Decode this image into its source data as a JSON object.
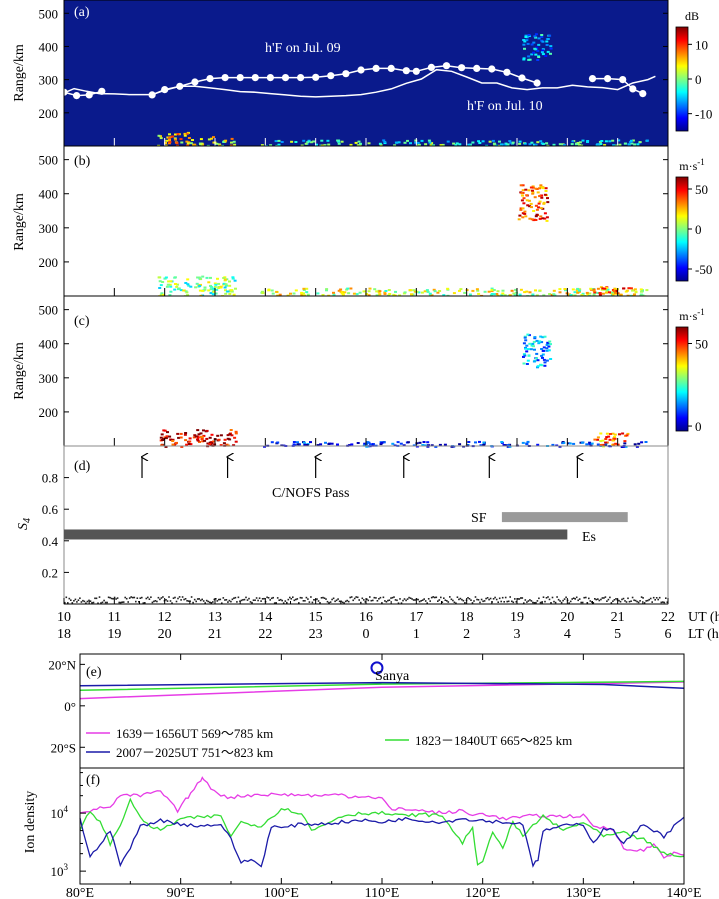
{
  "figure": {
    "panels": {
      "a": {
        "label": "(a)",
        "ylabel": "Range/km",
        "annotation_jul09": "h'F on Jul. 09",
        "annotation_jul10": "h'F on Jul. 10"
      },
      "b": {
        "label": "(b)",
        "ylabel": "Range/km"
      },
      "c": {
        "label": "(c)",
        "ylabel": "Range/km"
      },
      "d": {
        "label": "(d)",
        "pass_label": "C/NOFS Pass",
        "sf_label": "SF",
        "es_label": "Es"
      },
      "e": {
        "label": "(e)",
        "site_label": "Sanya"
      },
      "f": {
        "label": "(f)",
        "ylabel": "Ion density"
      }
    },
    "colorbars": [
      {
        "unit": "dB",
        "ticks": [
          "10",
          "0",
          "-10"
        ],
        "values": [
          10,
          0,
          -10
        ],
        "vmin": -15,
        "vmax": 15
      },
      {
        "unit": "m·s",
        "unit_sup": "-1",
        "ticks": [
          "50",
          "0",
          "-50"
        ],
        "values": [
          50,
          0,
          -50
        ],
        "vmin": -65,
        "vmax": 65
      },
      {
        "unit": "m·s",
        "unit_sup": "-1",
        "ticks": [
          "50",
          "0"
        ],
        "values": [
          50,
          0
        ],
        "vmin": -3,
        "vmax": 60
      }
    ],
    "ut_unit": "UT (h)",
    "lt_unit": "LT (h)",
    "ut_ticks": [
      "10",
      "11",
      "12",
      "13",
      "14",
      "15",
      "16",
      "17",
      "18",
      "19",
      "20",
      "21",
      "22"
    ],
    "lt_ticks": [
      "18",
      "19",
      "20",
      "21",
      "22",
      "23",
      "0",
      "1",
      "2",
      "3",
      "4",
      "5",
      "6"
    ],
    "lon_ticks": [
      "80°E",
      "90°E",
      "100°E",
      "110°E",
      "120°E",
      "130°E",
      "140°E"
    ],
    "lat_ticks": [
      "20°N",
      "0°",
      "20°S"
    ],
    "ion_ticks": {
      "e4": "4",
      "e3": "3"
    },
    "legend": [
      {
        "label": "1639－1656UT  569～785 km",
        "color": "#e63ce6"
      },
      {
        "label": "1823－1840UT  665～825 km",
        "color": "#33dd33"
      },
      {
        "label": "2007－2025UT  751～823 km",
        "color": "#1a1aa8"
      }
    ]
  },
  "chart_data": [
    {
      "panel": "a",
      "type": "heatmap",
      "xlabel": "UT (h)",
      "ylabel": "Range/km",
      "xlim": [
        10,
        22
      ],
      "ylim": [
        100,
        540
      ],
      "yticks": [
        "200",
        "300",
        "400",
        "500"
      ],
      "background_color": "#0a1a8c",
      "series": [
        {
          "name": "h'F on Jul. 09",
          "x": [
            10.0,
            10.25,
            10.5,
            10.75,
            11.75,
            12.0,
            12.3,
            12.6,
            12.9,
            13.2,
            13.5,
            13.8,
            14.1,
            14.4,
            14.7,
            15.0,
            15.3,
            15.6,
            15.9,
            16.2,
            16.5,
            16.8,
            17.0,
            17.3,
            17.6,
            17.9,
            18.2,
            18.5,
            18.8,
            19.1,
            19.4,
            20.5,
            20.8,
            21.1,
            21.3,
            21.5
          ],
          "y": [
            262,
            252,
            254,
            265,
            254,
            270,
            280,
            293,
            303,
            306,
            306,
            306,
            306,
            306,
            306,
            307,
            312,
            318,
            329,
            334,
            334,
            327,
            325,
            337,
            342,
            336,
            334,
            332,
            322,
            305,
            290,
            303,
            303,
            300,
            272,
            258
          ]
        },
        {
          "name": "h'F on Jul. 10",
          "x": [
            10.0,
            10.2,
            10.45,
            10.7,
            11.0,
            11.3,
            11.75,
            12.0,
            12.3,
            12.6,
            12.9,
            13.2,
            13.5,
            13.8,
            14.1,
            14.4,
            14.7,
            15.0,
            15.3,
            15.6,
            15.9,
            16.2,
            16.5,
            16.8,
            17.1,
            17.4,
            17.7,
            18.0,
            18.3,
            18.6,
            18.9,
            19.2,
            19.5,
            19.8,
            20.1,
            20.4,
            20.7,
            21.0,
            21.3,
            21.6,
            21.75
          ],
          "y": [
            260,
            273,
            265,
            258,
            257,
            255,
            255,
            268,
            280,
            280,
            275,
            270,
            264,
            262,
            258,
            254,
            250,
            248,
            250,
            252,
            255,
            262,
            272,
            289,
            302,
            330,
            325,
            308,
            290,
            290,
            275,
            270,
            275,
            275,
            283,
            278,
            276,
            270,
            290,
            300,
            310
          ]
        }
      ],
      "echo_regions": [
        {
          "x": [
            11.85,
            12.5
          ],
          "y": [
            100,
            145
          ],
          "value_db": 5
        },
        {
          "x": [
            12.5,
            13.4
          ],
          "y": [
            100,
            130
          ],
          "value_db": 3
        },
        {
          "x": [
            13.9,
            21.6
          ],
          "y": [
            103,
            120
          ],
          "value_db": -2
        },
        {
          "x": [
            19.1,
            19.65
          ],
          "y": [
            360,
            440
          ],
          "value_db": -6
        }
      ]
    },
    {
      "panel": "b",
      "type": "heatmap",
      "xlabel": "UT (h)",
      "ylabel": "Range/km",
      "xlim": [
        10,
        22
      ],
      "ylim": [
        100,
        540
      ],
      "yticks": [
        "200",
        "300",
        "400",
        "500"
      ],
      "echo_regions": [
        {
          "x": [
            11.85,
            13.4
          ],
          "y": [
            100,
            160
          ],
          "value_ms": 0
        },
        {
          "x": [
            13.9,
            21.6
          ],
          "y": [
            100,
            125
          ],
          "value_ms": 10
        },
        {
          "x": [
            19.0,
            19.6
          ],
          "y": [
            320,
            430
          ],
          "value_ms": 40
        },
        {
          "x": [
            20.5,
            21.3
          ],
          "y": [
            100,
            130
          ],
          "value_ms": 35
        }
      ]
    },
    {
      "panel": "c",
      "type": "heatmap",
      "xlabel": "UT (h)",
      "ylabel": "Range/km",
      "xlim": [
        10,
        22
      ],
      "ylim": [
        100,
        540
      ],
      "yticks": [
        "200",
        "300",
        "400",
        "500"
      ],
      "echo_regions": [
        {
          "x": [
            11.85,
            13.4
          ],
          "y": [
            100,
            150
          ],
          "value_ms": 55
        },
        {
          "x": [
            13.9,
            21.6
          ],
          "y": [
            100,
            115
          ],
          "value_ms": 5
        },
        {
          "x": [
            19.1,
            19.65
          ],
          "y": [
            330,
            430
          ],
          "value_ms": 15
        },
        {
          "x": [
            20.5,
            21.2
          ],
          "y": [
            100,
            140
          ],
          "value_ms": 45
        }
      ]
    },
    {
      "panel": "d",
      "type": "scatter",
      "xlabel": "UT (h)",
      "ylabel": "S4",
      "xlim": [
        10,
        22
      ],
      "ylim": [
        0,
        1
      ],
      "yticks": [
        "0.2",
        "0.4",
        "0.6",
        "0.8"
      ],
      "s4_scatter": {
        "mean": 0.03,
        "spread": 0.02
      },
      "pass_times_ut": [
        11.55,
        13.25,
        15.0,
        16.75,
        18.45,
        20.2
      ],
      "bars": [
        {
          "label": "SF",
          "x": [
            18.7,
            21.2
          ],
          "y": 0.55,
          "color": "#9a9a9a"
        },
        {
          "label": "Es",
          "x": [
            10.0,
            20.0
          ],
          "y": 0.44,
          "color": "#555555"
        }
      ]
    },
    {
      "panel": "e",
      "type": "line",
      "xlabel": "",
      "ylabel": "",
      "xlim": [
        80,
        140
      ],
      "ylim": [
        -30,
        25
      ],
      "yticks": [
        "20°N",
        "0°",
        "20°S"
      ],
      "site": {
        "name": "Sanya",
        "lon": 109.5,
        "lat": 18.3
      },
      "series": [
        {
          "name": "1639－1656UT  569～785 km",
          "x": [
            80,
            110,
            140
          ],
          "y": [
            3.5,
            9.0,
            11.5
          ]
        },
        {
          "name": "1823－1840UT  665～825 km",
          "x": [
            80,
            110,
            140
          ],
          "y": [
            7.5,
            10.5,
            11.8
          ]
        },
        {
          "name": "2007－2025UT  751～823 km",
          "x": [
            80,
            110,
            132,
            140
          ],
          "y": [
            9.7,
            11.2,
            10.3,
            8.5
          ]
        }
      ]
    },
    {
      "panel": "f",
      "type": "line",
      "xlabel": "",
      "ylabel": "Ion density",
      "xlim": [
        80,
        140
      ],
      "ylim": [
        600,
        60000
      ],
      "yscale": "log",
      "series": [
        {
          "name": "1639－1656UT  569～785 km",
          "x": [
            80,
            83,
            84,
            86,
            88,
            89,
            89.7,
            90.5,
            91,
            92,
            92.3,
            93,
            94,
            95,
            96,
            98,
            100,
            104,
            106,
            107,
            108,
            110,
            111,
            112,
            114,
            116,
            118,
            119,
            120,
            122,
            125,
            128,
            130,
            131,
            133,
            134,
            135,
            136,
            137,
            138,
            139,
            140
          ],
          "y": [
            10500,
            13000,
            20000,
            20000,
            24000,
            15000,
            11000,
            17000,
            22000,
            37000,
            40000,
            27000,
            21000,
            18000,
            20000,
            21000,
            21000,
            20000,
            21000,
            19000,
            20000,
            18000,
            11000,
            12000,
            11000,
            10000,
            11000,
            9000,
            10000,
            8000,
            9000,
            8800,
            9000,
            6000,
            5200,
            2600,
            2200,
            2300,
            2900,
            1800,
            2000,
            1900
          ]
        },
        {
          "name": "1823－1840UT  665～825 km",
          "x": [
            80,
            81,
            82,
            83,
            84,
            85,
            86,
            87,
            88,
            90,
            94,
            95,
            96,
            98,
            100,
            102,
            103,
            104,
            106,
            108,
            110,
            112,
            114,
            116,
            118,
            119,
            119.5,
            120,
            121,
            122,
            123,
            124,
            125,
            126,
            128,
            130,
            132,
            134,
            136,
            138,
            140
          ],
          "y": [
            5000,
            11000,
            7000,
            3000,
            6000,
            18000,
            8000,
            6000,
            5000,
            8000,
            9000,
            4000,
            7000,
            6000,
            12000,
            10000,
            5000,
            6000,
            9000,
            10000,
            10000,
            9000,
            9500,
            9000,
            3000,
            6000,
            1200,
            1400,
            5000,
            2500,
            7000,
            4000,
            6000,
            9000,
            5000,
            7000,
            4000,
            4500,
            3500,
            2000,
            1800
          ]
        },
        {
          "name": "2007－2025UT  751～823 km",
          "x": [
            80,
            81,
            82,
            83,
            84,
            85,
            86,
            88,
            90,
            92,
            94,
            95,
            96,
            97,
            98,
            99,
            100,
            102,
            104,
            106,
            108,
            110,
            112,
            114,
            116,
            118,
            120,
            122,
            124,
            125,
            125.5,
            126,
            128,
            130,
            131,
            132,
            133,
            134,
            136,
            138,
            140
          ],
          "y": [
            8000,
            1700,
            3000,
            5000,
            1300,
            2500,
            6000,
            7500,
            6500,
            6000,
            6500,
            3500,
            1400,
            1600,
            1200,
            6000,
            5500,
            6500,
            6500,
            7000,
            7500,
            7000,
            8000,
            7500,
            7000,
            8000,
            7500,
            7000,
            6500,
            1300,
            1500,
            5000,
            6000,
            6500,
            3000,
            5500,
            5000,
            3000,
            6500,
            4000,
            8500
          ]
        }
      ]
    }
  ]
}
